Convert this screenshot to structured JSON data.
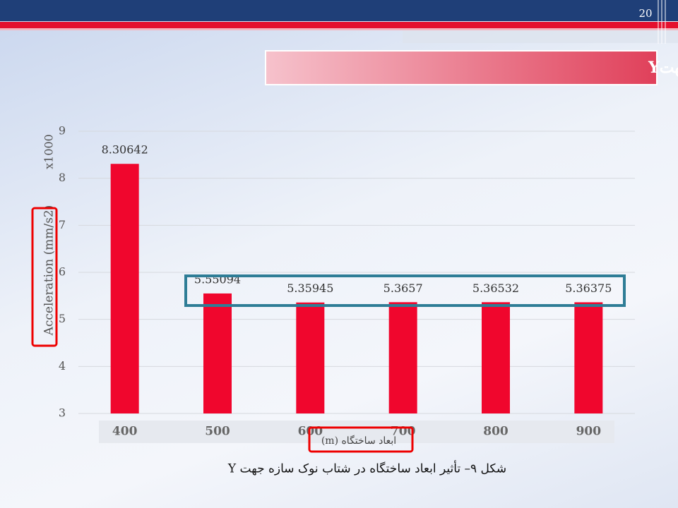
{
  "slide_number": "20",
  "chart_data": {
    "type": "bar",
    "title": "تأثیر ابعاد ساختگاه در شتاب نوک سازه جهتY",
    "y_label": "Acceleration (mm/s2)",
    "y_multiplier": "x1000",
    "x_label": "ابعاد ساختگاه (m)",
    "caption": "شکل ۹– تأثیر ابعاد ساختگاه در شتاب نوک سازه جهت Y",
    "categories": [
      "400",
      "500",
      "600",
      "700",
      "800",
      "900"
    ],
    "values": [
      8.30642,
      5.55094,
      5.35945,
      5.3657,
      5.36532,
      5.36375
    ],
    "color": "#f0062d",
    "ylim": [
      3,
      9
    ],
    "yticks": [
      3,
      4,
      5,
      6,
      7,
      8,
      9
    ],
    "grid": true
  }
}
